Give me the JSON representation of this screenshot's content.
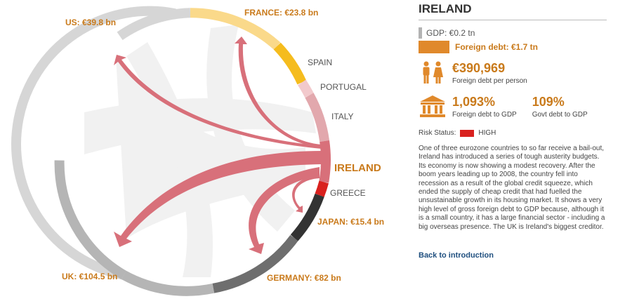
{
  "chart": {
    "focus": "IRELAND",
    "segments": [
      {
        "id": "us",
        "label": "US: €39.8 bn",
        "highlight": true
      },
      {
        "id": "france",
        "label": "FRANCE: €23.8 bn",
        "highlight": true
      },
      {
        "id": "spain",
        "label": "SPAIN",
        "highlight": false
      },
      {
        "id": "portugal",
        "label": "PORTUGAL",
        "highlight": false
      },
      {
        "id": "italy",
        "label": "ITALY",
        "highlight": false
      },
      {
        "id": "ireland",
        "label": "IRELAND",
        "highlight": true
      },
      {
        "id": "greece",
        "label": "GREECE",
        "highlight": false
      },
      {
        "id": "japan",
        "label": "JAPAN: €15.4 bn",
        "highlight": true
      },
      {
        "id": "germany",
        "label": "GERMANY: €82 bn",
        "highlight": true
      },
      {
        "id": "uk",
        "label": "UK: €104.5 bn",
        "highlight": true
      }
    ],
    "colors": {
      "us": "#d6d6d6",
      "france": "#fad98a",
      "spain": "#f5bc1e",
      "portugal": "#f2c9cc",
      "italy": "#e2a8ad",
      "ireland": "#d8707a",
      "greece": "#d9211e",
      "japan": "#333333",
      "germany": "#6e6e6e",
      "uk": "#b5b5b5",
      "flow": "#d8707a"
    }
  },
  "panel": {
    "country": "IRELAND",
    "gdp": "GDP: €0.2 tn",
    "foreign_debt": "Foreign debt: €1.7 tn",
    "per_person_value": "€390,969",
    "per_person_label": "Foreign debt per person",
    "debt_gdp_value": "1,093%",
    "debt_gdp_label": "Foreign debt to GDP",
    "govt_gdp_value": "109%",
    "govt_gdp_label": "Govt debt to GDP",
    "risk_label": "Risk Status:",
    "risk_value": "HIGH",
    "risk_color": "#d9211e",
    "description": "One of three eurozone countries to so far receive a bail-out, Ireland has introduced a series of tough austerity budgets. Its economy is now showing a modest recovery. After the boom years leading up to 2008, the country fell into recession as a result of the global credit squeeze, which ended the supply of cheap credit that had fuelled the unsustainable growth in its housing market. It shows a very high level of gross foreign debt to GDP because, although it is a small country, it has a large financial sector - including a big overseas presence. The UK is Ireland's biggest creditor.",
    "back_link": "Back to introduction",
    "icons": {
      "people": "people-icon",
      "bank": "bank-icon"
    }
  }
}
